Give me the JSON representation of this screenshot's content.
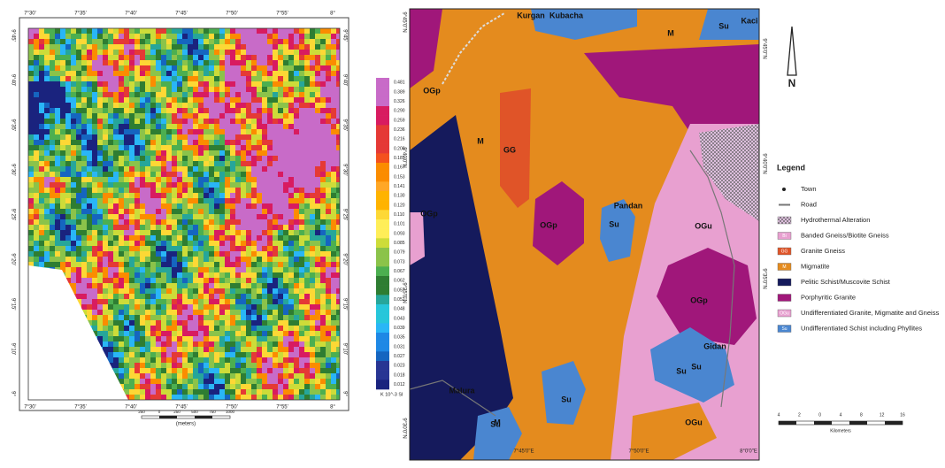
{
  "left_map": {
    "top_labels": [
      "7°30'",
      "7°35'",
      "7°40'",
      "7°45'",
      "7°50'",
      "7°55'",
      "8°"
    ],
    "bottom_labels": [
      "7°30'",
      "7°35'",
      "7°40'",
      "7°45'",
      "7°50'",
      "7°55'",
      "8°"
    ],
    "left_labels": [
      "9°45'",
      "9°40'",
      "9°35'",
      "9°30'",
      "9°25'",
      "9°20'",
      "9°15'",
      "9°10'",
      "9°"
    ],
    "right_labels": [
      "9°45'",
      "9°40'",
      "9°35'",
      "9°30'",
      "9°25'",
      "9°20'",
      "9°15'",
      "9°10'",
      "9°"
    ],
    "colorbar": {
      "labels": [
        "0.481",
        "0.389",
        "0.326",
        "0.290",
        "0.259",
        "0.236",
        "0.216",
        "0.200",
        "0.183",
        "0.167",
        "0.153",
        "0.141",
        "0.130",
        "0.120",
        "0.110",
        "0.101",
        "0.093",
        "0.085",
        "0.079",
        "0.073",
        "0.067",
        "0.062",
        "0.057",
        "0.052",
        "0.048",
        "0.043",
        "0.039",
        "0.035",
        "0.031",
        "0.027",
        "0.023",
        "0.018",
        "0.012"
      ],
      "unit": "K 10^-3 SI"
    },
    "scale_bar": {
      "ticks": [
        "250",
        "0",
        "250",
        "500",
        "750",
        "1000"
      ],
      "unit": "(meters)"
    }
  },
  "right_map": {
    "place_labels": [
      "Kurgan",
      "Kubacha",
      "M",
      "Su",
      "Kaci",
      "OGp",
      "OGp",
      "M",
      "GG",
      "OGp",
      "Su",
      "Pandan",
      "OGu",
      "OGp",
      "Gidan",
      "Su",
      "Su",
      "Su",
      "M",
      "Malura",
      "OGu",
      "Su"
    ],
    "left_labels": [
      "9°45'0\"N",
      "9°40'0\"N",
      "9°35'0\"N",
      "9°30'0\"N"
    ],
    "right_labels": [
      "9°45'0\"N",
      "9°40'0\"N",
      "9°35'0\"N"
    ],
    "bottom_labels": [
      "7°45'0\"E",
      "7°50'0\"E",
      "8°0'0\"E"
    ]
  },
  "north": "N",
  "legend": {
    "title": "Legend",
    "items": [
      {
        "code": "",
        "label": "Town"
      },
      {
        "code": "",
        "label": "Road"
      },
      {
        "code": "",
        "label": "Hydrothermal Alteration"
      },
      {
        "code": "Bi",
        "label": "Banded Gneiss/Biotite Gneiss"
      },
      {
        "code": "GG",
        "label": "Granite Gneiss"
      },
      {
        "code": "M",
        "label": "Migmatite"
      },
      {
        "code": "",
        "label": "Pelitic Schist/Muscovite Schist"
      },
      {
        "code": "",
        "label": "Porphyritic Granite"
      },
      {
        "code": "OGu",
        "label": "Undifferentiated Granite, Migmatite and Gneiss"
      },
      {
        "code": "Su",
        "label": "Undifferentiated Schist including Phyllites"
      }
    ]
  },
  "scale_bar": {
    "ticks": [
      "4",
      "2",
      "0",
      "4",
      "8",
      "12",
      "16"
    ],
    "unit": "Kilometers"
  }
}
